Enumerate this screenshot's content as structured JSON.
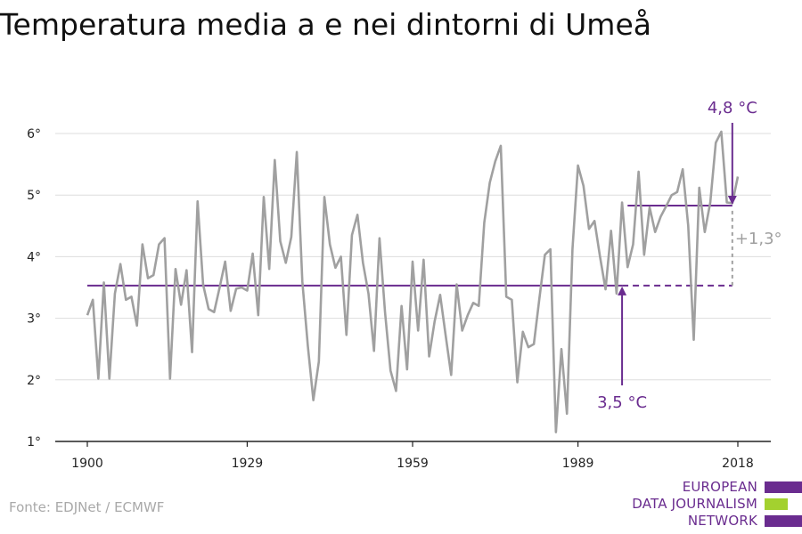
{
  "chart_data": {
    "type": "line",
    "title": "Temperatura media a e nei dintorni di Umeå",
    "xlabel": "",
    "ylabel": "",
    "xlim": [
      1900,
      2018
    ],
    "ylim": [
      1,
      6.2
    ],
    "x_ticks": [
      1900,
      1929,
      1959,
      1989,
      2018
    ],
    "x_tick_labels": [
      "1900",
      "1929",
      "1959",
      "1989",
      "2018"
    ],
    "y_ticks": [
      1,
      2,
      3,
      4,
      5,
      6
    ],
    "y_tick_labels": [
      "1°",
      "2°",
      "3°",
      "4°",
      "5°",
      "6°"
    ],
    "grid": true,
    "series": [
      {
        "color": "#a0a0a0",
        "x": [
          1900,
          1901,
          1902,
          1903,
          1904,
          1905,
          1906,
          1907,
          1908,
          1909,
          1910,
          1911,
          1912,
          1913,
          1914,
          1915,
          1916,
          1917,
          1918,
          1919,
          1920,
          1921,
          1922,
          1923,
          1924,
          1925,
          1926,
          1927,
          1928,
          1929,
          1930,
          1931,
          1932,
          1933,
          1934,
          1935,
          1936,
          1937,
          1938,
          1939,
          1940,
          1941,
          1942,
          1943,
          1944,
          1945,
          1946,
          1947,
          1948,
          1949,
          1950,
          1951,
          1952,
          1953,
          1954,
          1955,
          1956,
          1957,
          1958,
          1959,
          1960,
          1961,
          1962,
          1963,
          1964,
          1965,
          1966,
          1967,
          1968,
          1969,
          1970,
          1971,
          1972,
          1973,
          1974,
          1975,
          1976,
          1977,
          1978,
          1979,
          1980,
          1981,
          1982,
          1983,
          1984,
          1985,
          1986,
          1987,
          1988,
          1989,
          1990,
          1991,
          1992,
          1993,
          1994,
          1995,
          1996,
          1997,
          1998,
          1999,
          2000,
          2001,
          2002,
          2003,
          2004,
          2005,
          2006,
          2007,
          2008,
          2009,
          2010,
          2011,
          2012,
          2013,
          2014,
          2015,
          2016,
          2017,
          2018
        ],
        "values": [
          3.05,
          3.3,
          2.02,
          3.58,
          2.02,
          3.4,
          3.88,
          3.3,
          3.35,
          2.88,
          4.2,
          3.65,
          3.7,
          4.2,
          4.3,
          2.02,
          3.8,
          3.22,
          3.78,
          2.45,
          4.9,
          3.55,
          3.15,
          3.1,
          3.5,
          3.92,
          3.12,
          3.48,
          3.5,
          3.45,
          4.05,
          3.05,
          4.97,
          3.8,
          5.57,
          4.25,
          3.9,
          4.32,
          5.7,
          3.6,
          2.55,
          1.67,
          2.3,
          4.97,
          4.2,
          3.82,
          4.0,
          2.73,
          4.35,
          4.68,
          3.9,
          3.4,
          2.47,
          4.3,
          3.1,
          2.15,
          1.82,
          3.2,
          2.17,
          3.92,
          2.8,
          3.95,
          2.38,
          2.95,
          3.38,
          2.72,
          2.08,
          3.55,
          2.8,
          3.05,
          3.25,
          3.2,
          4.55,
          5.2,
          5.55,
          5.8,
          3.35,
          3.3,
          1.96,
          2.78,
          2.53,
          2.58,
          3.32,
          4.03,
          4.12,
          1.15,
          2.5,
          1.45,
          4.12,
          5.48,
          5.15,
          4.45,
          4.58,
          4.0,
          3.47,
          4.42,
          3.4,
          4.88,
          3.83,
          4.2,
          5.38,
          4.03,
          4.8,
          4.4,
          4.65,
          4.82,
          5.0,
          5.05,
          5.42,
          4.5,
          2.65,
          5.12,
          4.4,
          4.88,
          5.85,
          6.03,
          4.88,
          4.87,
          5.3
        ]
      }
    ],
    "reference_lines": [
      {
        "from": 1900,
        "to": 1997,
        "value": 3.53,
        "style": "solid",
        "color": "#6a2c8f"
      },
      {
        "from": 1997,
        "to": 2017,
        "value": 3.53,
        "style": "dashed",
        "color": "#6a2c8f"
      },
      {
        "from": 1998,
        "to": 2017,
        "value": 4.83,
        "style": "solid",
        "color": "#6a2c8f"
      }
    ],
    "annotations": {
      "recent": {
        "text": "4,8 °C",
        "x": 2017,
        "value": 4.83,
        "color": "#6a2c8f"
      },
      "base": {
        "text": "3,5 °C",
        "x": 1997,
        "value": 3.53,
        "color": "#6a2c8f"
      },
      "diff": {
        "text": "+1,3°",
        "x": 2017,
        "from": 3.53,
        "to": 4.83,
        "color": "#a0a0a0"
      }
    }
  },
  "source": "Fonte: EDJNet / ECMWF",
  "logo": {
    "lines": [
      "EUROPEAN",
      "DATA JOURNALISM",
      "NETWORK"
    ],
    "bar_colors": [
      "#6a2c8f",
      "#a3d12f",
      "#6a2c8f"
    ]
  }
}
